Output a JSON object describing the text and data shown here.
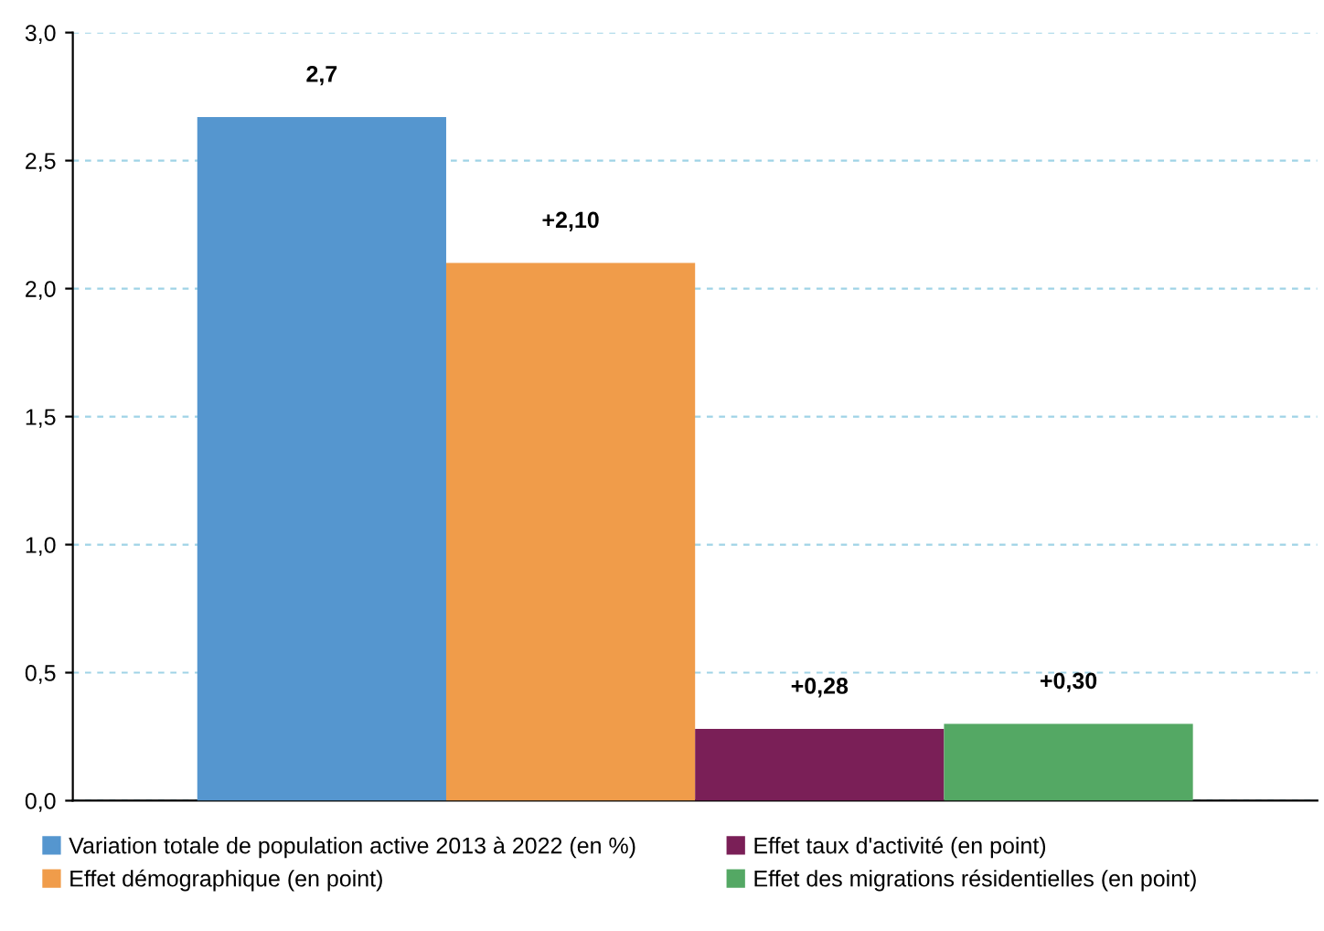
{
  "chart_data": {
    "type": "bar",
    "categories": [
      null
    ],
    "series": [
      {
        "name": "Variation totale de population active 2013 à 2022 (en %)",
        "color": "#5596cf",
        "values": [
          2.67
        ],
        "value_labels": [
          "2,7"
        ]
      },
      {
        "name": "Effet démographique (en point)",
        "color": "#f09c4a",
        "values": [
          2.1
        ],
        "value_labels": [
          "+2,10"
        ]
      },
      {
        "name": "Effet taux d'activité (en point)",
        "color": "#7a1f57",
        "values": [
          0.28
        ],
        "value_labels": [
          "+0,28"
        ]
      },
      {
        "name": "Effet des migrations résidentielles (en point)",
        "color": "#54a864",
        "values": [
          0.3
        ],
        "value_labels": [
          "+0,30"
        ]
      }
    ],
    "ylim": [
      0,
      3.0
    ],
    "yticks": [
      {
        "value": 0,
        "label": "0,0"
      },
      {
        "value": 0.5,
        "label": "0,5"
      },
      {
        "value": 1.0,
        "label": "1,0"
      },
      {
        "value": 1.5,
        "label": "1,5"
      },
      {
        "value": 2.0,
        "label": "2,0"
      },
      {
        "value": 2.5,
        "label": "2,5"
      },
      {
        "value": 3.0,
        "label": "3,0"
      }
    ],
    "grid": "y",
    "legend": "bottom"
  }
}
